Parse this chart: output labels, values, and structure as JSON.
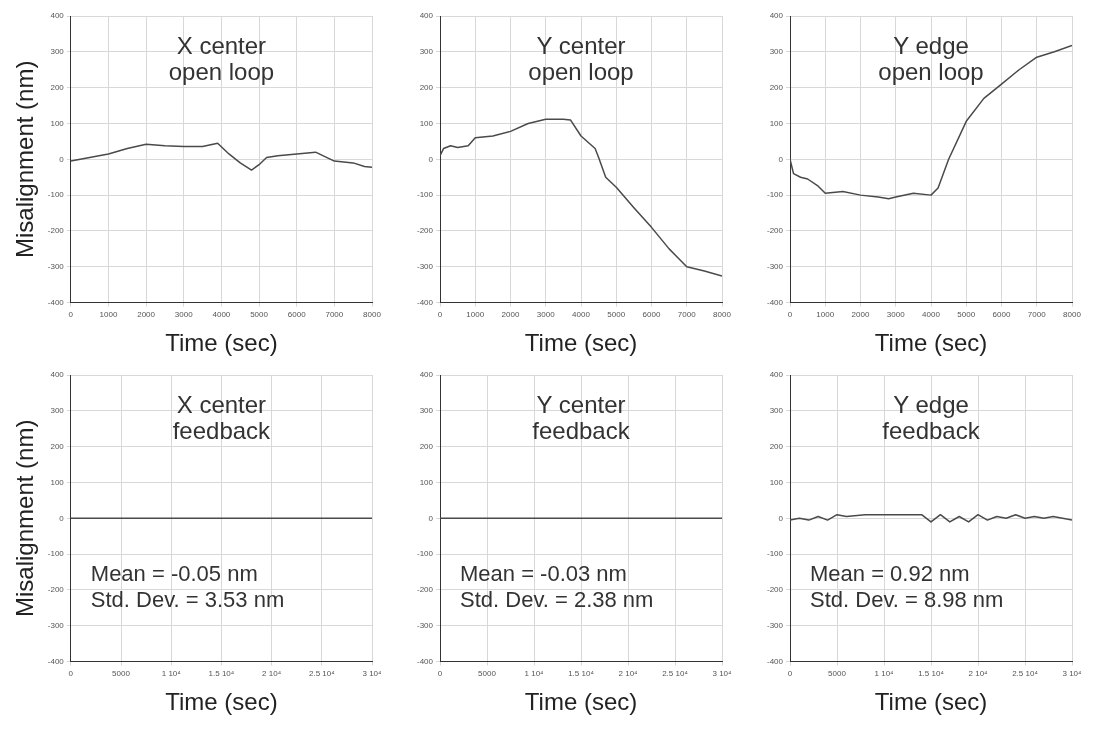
{
  "chart_data": [
    {
      "type": "line",
      "title": "X center open loop",
      "xlabel": "Time (sec)",
      "ylabel": "Misalignment (nm)",
      "xlim": [
        0,
        8000
      ],
      "ylim": [
        -400,
        400
      ],
      "xticks": [
        0,
        1000,
        2000,
        3000,
        4000,
        5000,
        6000,
        7000,
        8000
      ],
      "yticks": [
        -400,
        -300,
        -200,
        -100,
        0,
        100,
        200,
        300,
        400
      ],
      "grid": true,
      "marker": "none",
      "line_style": "solid",
      "series": [
        {
          "color": "#4a4a4a",
          "x": [
            0,
            500,
            1000,
            1500,
            2000,
            2500,
            3000,
            3500,
            3900,
            4200,
            4500,
            4800,
            5000,
            5200,
            5500,
            6000,
            6500,
            7000,
            7500,
            7800,
            8000
          ],
          "values": [
            -5,
            5,
            15,
            30,
            42,
            38,
            36,
            36,
            45,
            15,
            -10,
            -30,
            -15,
            5,
            10,
            15,
            20,
            -5,
            -10,
            -20,
            -22
          ]
        }
      ]
    },
    {
      "type": "line",
      "title": "Y center open loop",
      "xlabel": "Time (sec)",
      "xlim": [
        0,
        8000
      ],
      "ylim": [
        -400,
        400
      ],
      "xticks": [
        0,
        1000,
        2000,
        3000,
        4000,
        5000,
        6000,
        7000,
        8000
      ],
      "yticks": [
        -400,
        -300,
        -200,
        -100,
        0,
        100,
        200,
        300,
        400
      ],
      "grid": true,
      "marker": "none",
      "line_style": "solid",
      "series": [
        {
          "color": "#4a4a4a",
          "x": [
            0,
            100,
            300,
            500,
            800,
            1000,
            1500,
            2000,
            2500,
            3000,
            3500,
            3700,
            4000,
            4400,
            4500,
            4700,
            5000,
            5500,
            6000,
            6500,
            7000,
            7500,
            8000
          ],
          "values": [
            10,
            30,
            38,
            33,
            38,
            60,
            65,
            78,
            100,
            112,
            112,
            110,
            65,
            30,
            5,
            -50,
            -78,
            -135,
            -190,
            -250,
            -300,
            -312,
            -326
          ]
        }
      ]
    },
    {
      "type": "line",
      "title": "Y edge open loop",
      "xlabel": "Time (sec)",
      "xlim": [
        0,
        8000
      ],
      "ylim": [
        -400,
        400
      ],
      "xticks": [
        0,
        1000,
        2000,
        3000,
        4000,
        5000,
        6000,
        7000,
        8000
      ],
      "yticks": [
        -400,
        -300,
        -200,
        -100,
        0,
        100,
        200,
        300,
        400
      ],
      "grid": true,
      "marker": "none",
      "line_style": "solid",
      "series": [
        {
          "color": "#4a4a4a",
          "x": [
            0,
            100,
            300,
            500,
            800,
            1000,
            1500,
            2000,
            2500,
            2800,
            3000,
            3500,
            4000,
            4200,
            4500,
            5000,
            5500,
            6000,
            6500,
            7000,
            7500,
            8000
          ],
          "values": [
            0,
            -40,
            -50,
            -55,
            -75,
            -95,
            -90,
            -100,
            -105,
            -110,
            -105,
            -95,
            -100,
            -80,
            0,
            106,
            170,
            210,
            250,
            285,
            300,
            318
          ]
        }
      ]
    },
    {
      "type": "line",
      "title": "X center feedback",
      "xlabel": "Time (sec)",
      "ylabel": "Misalignment (nm)",
      "xlim": [
        0,
        30000
      ],
      "ylim": [
        -400,
        400
      ],
      "xticks": [
        0,
        5000,
        {
          "value": 10000,
          "label": "1 10⁴"
        },
        {
          "value": 15000,
          "label": "1.5 10⁴"
        },
        {
          "value": 20000,
          "label": "2 10⁴"
        },
        {
          "value": 25000,
          "label": "2.5 10⁴"
        },
        {
          "value": 30000,
          "label": "3 10⁴"
        }
      ],
      "yticks": [
        -400,
        -300,
        -200,
        -100,
        0,
        100,
        200,
        300,
        400
      ],
      "grid": true,
      "marker": "none",
      "line_style": "solid",
      "annotations": [
        "Mean = -0.05 nm",
        "Std. Dev. = 3.53 nm"
      ],
      "series": [
        {
          "color": "#4a4a4a",
          "x": [
            0,
            5000,
            10000,
            15000,
            20000,
            25000,
            30000
          ],
          "values": [
            0,
            0,
            0,
            0,
            0,
            0,
            0
          ]
        }
      ]
    },
    {
      "type": "line",
      "title": "Y center feedback",
      "xlabel": "Time (sec)",
      "xlim": [
        0,
        30000
      ],
      "ylim": [
        -400,
        400
      ],
      "xticks": [
        0,
        5000,
        {
          "value": 10000,
          "label": "1 10⁴"
        },
        {
          "value": 15000,
          "label": "1.5 10⁴"
        },
        {
          "value": 20000,
          "label": "2 10⁴"
        },
        {
          "value": 25000,
          "label": "2.5 10⁴"
        },
        {
          "value": 30000,
          "label": "3 10⁴"
        }
      ],
      "yticks": [
        -400,
        -300,
        -200,
        -100,
        0,
        100,
        200,
        300,
        400
      ],
      "grid": true,
      "marker": "none",
      "line_style": "solid",
      "annotations": [
        "Mean = -0.03 nm",
        "Std. Dev. = 2.38 nm"
      ],
      "series": [
        {
          "color": "#4a4a4a",
          "x": [
            0,
            5000,
            10000,
            15000,
            20000,
            25000,
            30000
          ],
          "values": [
            0,
            0,
            0,
            0,
            0,
            0,
            0
          ]
        }
      ]
    },
    {
      "type": "line",
      "title": "Y edge feedback",
      "xlabel": "Time (sec)",
      "xlim": [
        0,
        30000
      ],
      "ylim": [
        -400,
        400
      ],
      "xticks": [
        0,
        5000,
        {
          "value": 10000,
          "label": "1 10⁴"
        },
        {
          "value": 15000,
          "label": "1.5 10⁴"
        },
        {
          "value": 20000,
          "label": "2 10⁴"
        },
        {
          "value": 25000,
          "label": "2.5 10⁴"
        },
        {
          "value": 30000,
          "label": "3 10⁴"
        }
      ],
      "yticks": [
        -400,
        -300,
        -200,
        -100,
        0,
        100,
        200,
        300,
        400
      ],
      "grid": true,
      "marker": "none",
      "line_style": "solid",
      "annotations": [
        "Mean = 0.92 nm",
        "Std. Dev. = 8.98 nm"
      ],
      "series": [
        {
          "color": "#4a4a4a",
          "x": [
            0,
            1000,
            2000,
            3000,
            4000,
            5000,
            6000,
            8000,
            10000,
            12000,
            14000,
            15000,
            16000,
            17000,
            18000,
            19000,
            20000,
            21000,
            22000,
            23000,
            24000,
            25000,
            26000,
            27000,
            28000,
            30000
          ],
          "values": [
            -5,
            0,
            -5,
            5,
            -5,
            10,
            5,
            10,
            10,
            10,
            10,
            -10,
            10,
            -10,
            5,
            -10,
            10,
            -5,
            5,
            0,
            10,
            0,
            5,
            0,
            5,
            -5
          ]
        }
      ]
    }
  ]
}
